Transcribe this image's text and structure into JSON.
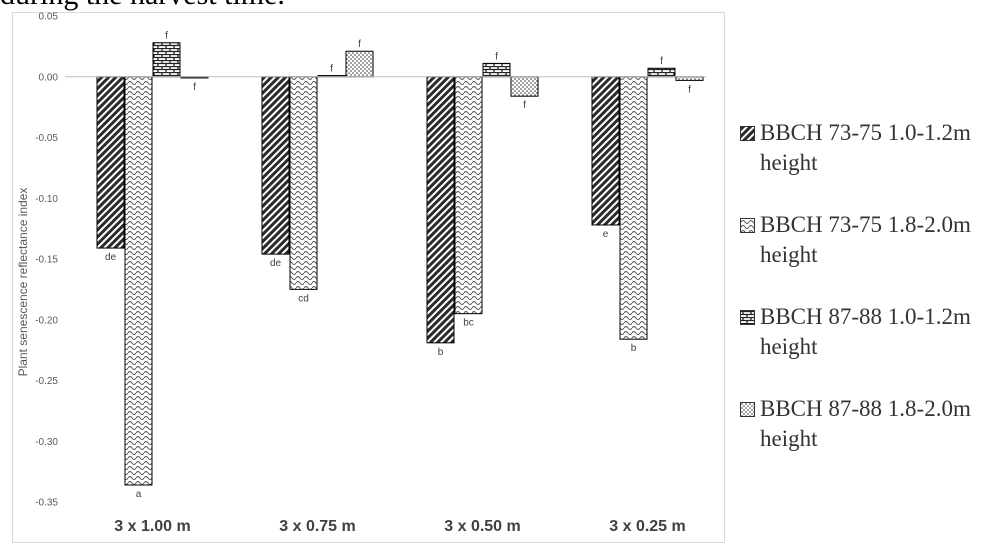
{
  "caption": "during the harvest time.",
  "chart_data": {
    "type": "bar",
    "categories": [
      "3 x 1.00 m",
      "3 x 0.75 m",
      "3 x 0.50 m",
      "3 x 0.25 m"
    ],
    "ylabel": "Plant senescence reflectance index",
    "ylim": [
      -0.35,
      0.05
    ],
    "yticks": [
      "0.05",
      "0.00",
      "-0.05",
      "-0.10",
      "-0.15",
      "-0.20",
      "-0.25",
      "-0.30",
      "-0.35"
    ],
    "grid": false,
    "legend_position": "right",
    "series": [
      {
        "name": "BBCH 73-75 1.0-1.2m height",
        "pattern": "diagonal",
        "values": [
          -0.141,
          -0.146,
          -0.219,
          -0.122
        ],
        "labels": [
          "de",
          "de",
          "b",
          "e"
        ]
      },
      {
        "name": "BBCH 73-75 1.8-2.0m height",
        "pattern": "wave",
        "values": [
          -0.336,
          -0.175,
          -0.195,
          -0.216
        ],
        "labels": [
          "a",
          "cd",
          "bc",
          "b"
        ]
      },
      {
        "name": "BBCH 87-88 1.0-1.2m height",
        "pattern": "brick",
        "values": [
          0.028,
          0.001,
          0.011,
          0.007
        ],
        "labels": [
          "f",
          "f",
          "f",
          "f"
        ]
      },
      {
        "name": "BBCH 87-88 1.8-2.0m height",
        "pattern": "dots",
        "values": [
          -0.001,
          0.021,
          -0.016,
          -0.003
        ],
        "labels": [
          "f",
          "f",
          "f",
          "f"
        ]
      }
    ]
  }
}
